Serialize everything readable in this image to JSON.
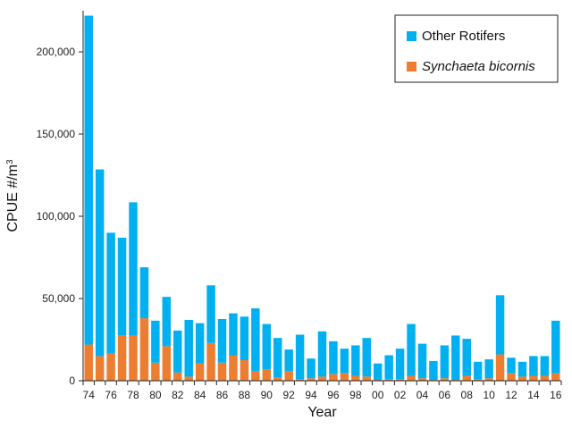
{
  "chart_data": {
    "type": "bar",
    "stacked": true,
    "categories": [
      "74",
      "75",
      "76",
      "77",
      "78",
      "79",
      "80",
      "81",
      "82",
      "83",
      "84",
      "85",
      "86",
      "87",
      "88",
      "89",
      "90",
      "91",
      "92",
      "93",
      "94",
      "95",
      "96",
      "97",
      "98",
      "99",
      "00",
      "01",
      "02",
      "03",
      "04",
      "05",
      "06",
      "07",
      "08",
      "09",
      "10",
      "11",
      "12",
      "13",
      "14",
      "15",
      "16"
    ],
    "x_tick_labels": [
      "74",
      "76",
      "78",
      "80",
      "82",
      "84",
      "86",
      "88",
      "90",
      "92",
      "94",
      "96",
      "98",
      "00",
      "02",
      "04",
      "06",
      "08",
      "10",
      "12",
      "14",
      "16"
    ],
    "series": [
      {
        "name": "Synchaeta bicornis",
        "color": "#ed7d31",
        "italic": true,
        "values": [
          22000,
          15000,
          16500,
          27500,
          27500,
          38000,
          11000,
          21000,
          5000,
          2500,
          10500,
          23000,
          11000,
          15500,
          12500,
          6000,
          7000,
          2000,
          6000,
          1000,
          1500,
          2500,
          4000,
          4500,
          3000,
          2500,
          500,
          1000,
          1000,
          3000,
          1500,
          500,
          1500,
          500,
          3000,
          1000,
          1500,
          16000,
          4500,
          2500,
          3000,
          3000,
          4500
        ]
      },
      {
        "name": "Other Rotifers",
        "color": "#00b0f0",
        "italic": false,
        "values": [
          200000,
          113500,
          73500,
          59500,
          81000,
          31000,
          25500,
          30000,
          25500,
          34500,
          24500,
          35000,
          26500,
          25500,
          26500,
          38000,
          27500,
          24000,
          13000,
          27000,
          12000,
          27500,
          20000,
          15000,
          18500,
          23500,
          10000,
          14500,
          18500,
          31500,
          21000,
          11500,
          20000,
          27000,
          22500,
          10500,
          11500,
          36000,
          9500,
          9000,
          12000,
          12000,
          32000
        ]
      }
    ],
    "xlabel": "Year",
    "ylabel": "CPUE #/m",
    "ylabel_superscript": "3",
    "ylim": [
      0,
      225000
    ],
    "y_ticks": [
      0,
      50000,
      100000,
      150000,
      200000
    ],
    "y_tick_labels": [
      "0",
      "50,000",
      "100,000",
      "150,000",
      "200,000"
    ],
    "grid": false,
    "legend": {
      "position": "top-right",
      "order": [
        "Other Rotifers",
        "Synchaeta bicornis"
      ]
    }
  }
}
